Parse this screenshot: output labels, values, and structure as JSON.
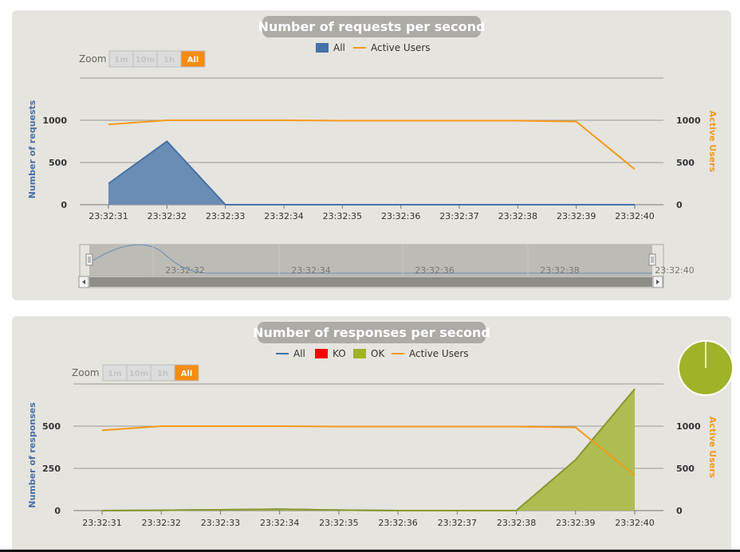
{
  "colors": {
    "all": "#4572a7",
    "all_fill": "#6b8db5",
    "active_users": "#f59a17",
    "ko": "#ff0000",
    "ok": "#a0b228",
    "ok_fill": "#adbd52",
    "grid": "#999999",
    "zoom_active": "#f78c10",
    "pill": "#adaba5"
  },
  "zoom": {
    "label": "Zoom",
    "buttons": [
      "1m",
      "10m",
      "1h",
      "All"
    ],
    "active": "All"
  },
  "chart_data": [
    {
      "type": "area",
      "title": "Number of requests per second",
      "ylabel": "Number of requests",
      "y2label": "Active Users",
      "categories": [
        "23:32:31",
        "23:32:32",
        "23:32:33",
        "23:32:34",
        "23:32:35",
        "23:32:36",
        "23:32:37",
        "23:32:38",
        "23:32:39",
        "23:32:40"
      ],
      "ylim": [
        0,
        1500
      ],
      "yticks": [
        "0",
        "500",
        "1000"
      ],
      "y2lim": [
        0,
        1500
      ],
      "y2ticks": [
        "0",
        "500",
        "1000"
      ],
      "legend": [
        "All",
        "Active Users"
      ],
      "grid": true,
      "series": [
        {
          "name": "All",
          "axis": "left",
          "kind": "area",
          "values": [
            250,
            750,
            0,
            0,
            0,
            0,
            0,
            0,
            0,
            0
          ]
        },
        {
          "name": "Active Users",
          "axis": "right",
          "kind": "line",
          "values": [
            950,
            1000,
            1000,
            1000,
            995,
            995,
            995,
            995,
            985,
            420
          ]
        }
      ],
      "navigator": {
        "labels": [
          "23:32:32",
          "23:32:34",
          "23:32:36",
          "23:32:38",
          "23:32:40"
        ]
      }
    },
    {
      "type": "area",
      "title": "Number of responses per second",
      "ylabel": "Number of responses",
      "y2label": "Active Users",
      "categories": [
        "23:32:31",
        "23:32:32",
        "23:32:33",
        "23:32:34",
        "23:32:35",
        "23:32:36",
        "23:32:37",
        "23:32:38",
        "23:32:39",
        "23:32:40"
      ],
      "ylim": [
        0,
        750
      ],
      "yticks": [
        "0",
        "250",
        "500"
      ],
      "y2lim": [
        0,
        1500
      ],
      "y2ticks": [
        "0",
        "500",
        "1000"
      ],
      "legend": [
        "All",
        "KO",
        "OK",
        "Active Users"
      ],
      "grid": true,
      "series": [
        {
          "name": "All",
          "axis": "left",
          "kind": "line",
          "values": [
            0,
            2,
            5,
            8,
            3,
            0,
            0,
            0,
            300,
            720
          ]
        },
        {
          "name": "KO",
          "axis": "left",
          "kind": "area",
          "values": [
            0,
            0,
            0,
            0,
            0,
            0,
            0,
            0,
            0,
            0
          ]
        },
        {
          "name": "OK",
          "axis": "left",
          "kind": "area",
          "values": [
            0,
            2,
            5,
            8,
            3,
            0,
            0,
            0,
            300,
            720
          ]
        },
        {
          "name": "Active Users",
          "axis": "right",
          "kind": "line",
          "values": [
            950,
            1000,
            1000,
            1000,
            995,
            995,
            995,
            995,
            985,
            420
          ]
        }
      ],
      "pie": {
        "ok_fraction": 1.0
      }
    }
  ]
}
